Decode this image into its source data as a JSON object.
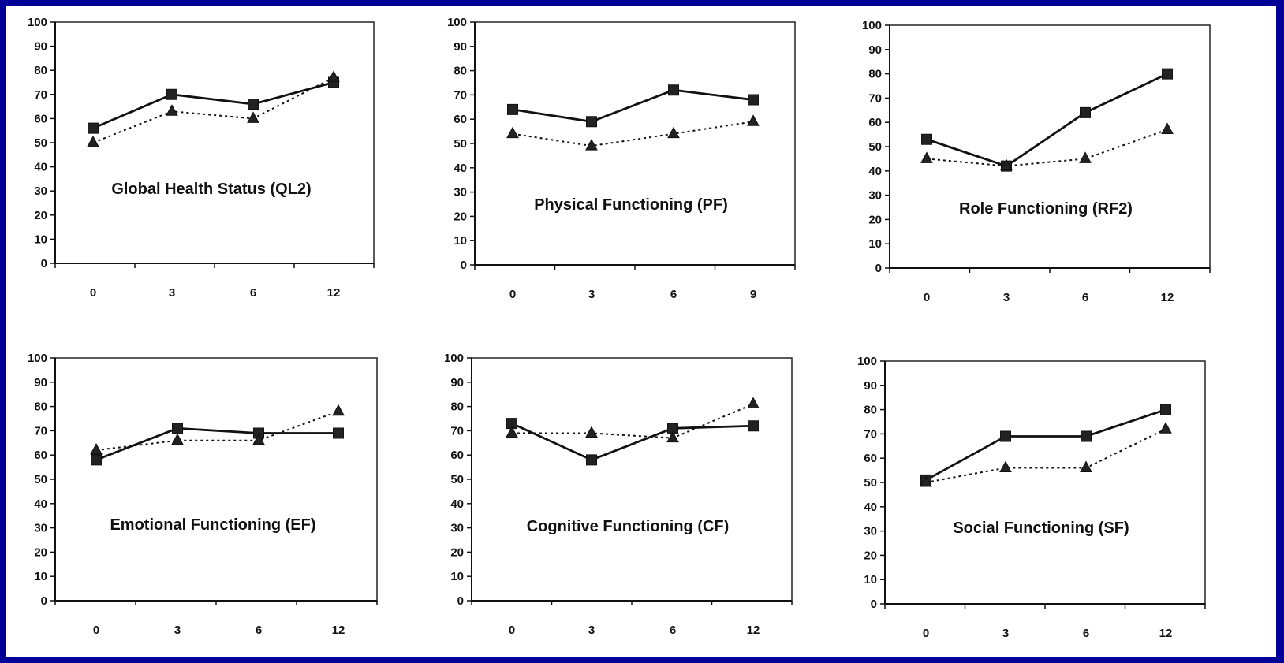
{
  "chart_data": [
    {
      "type": "line",
      "title": "Global Health Status (QL2)",
      "categories": [
        "0",
        "3",
        "6",
        "12"
      ],
      "ylim": [
        0,
        100
      ],
      "yticks": [
        "0",
        "10",
        "20",
        "30",
        "40",
        "50",
        "60",
        "70",
        "80",
        "90",
        "100"
      ],
      "grid": false,
      "series": [
        {
          "marker": "square",
          "style": "solid",
          "values": [
            56,
            70,
            66,
            75
          ]
        },
        {
          "marker": "triangle",
          "style": "dotted",
          "values": [
            50,
            63,
            60,
            77
          ]
        }
      ]
    },
    {
      "type": "line",
      "title": "Physical Functioning (PF)",
      "categories": [
        "0",
        "3",
        "6",
        "9"
      ],
      "ylim": [
        0,
        100
      ],
      "yticks": [
        "0",
        "10",
        "20",
        "30",
        "40",
        "50",
        "60",
        "70",
        "80",
        "90",
        "100"
      ],
      "grid": false,
      "series": [
        {
          "marker": "square",
          "style": "solid",
          "values": [
            64,
            59,
            72,
            68
          ]
        },
        {
          "marker": "triangle",
          "style": "dotted",
          "values": [
            54,
            49,
            54,
            59
          ]
        }
      ]
    },
    {
      "type": "line",
      "title": "Role Functioning (RF2)",
      "categories": [
        "0",
        "3",
        "6",
        "12"
      ],
      "ylim": [
        0,
        100
      ],
      "yticks": [
        "0",
        "10",
        "20",
        "30",
        "40",
        "50",
        "60",
        "70",
        "80",
        "90",
        "100"
      ],
      "grid": false,
      "series": [
        {
          "marker": "square",
          "style": "solid",
          "values": [
            53,
            42,
            64,
            80
          ]
        },
        {
          "marker": "triangle",
          "style": "dotted",
          "values": [
            45,
            42,
            45,
            57
          ]
        }
      ]
    },
    {
      "type": "line",
      "title": "Emotional Functioning (EF)",
      "categories": [
        "0",
        "3",
        "6",
        "12"
      ],
      "ylim": [
        0,
        100
      ],
      "yticks": [
        "0",
        "10",
        "20",
        "30",
        "40",
        "50",
        "60",
        "70",
        "80",
        "90",
        "100"
      ],
      "grid": false,
      "series": [
        {
          "marker": "square",
          "style": "solid",
          "values": [
            58,
            71,
            69,
            69
          ]
        },
        {
          "marker": "triangle",
          "style": "dotted",
          "values": [
            62,
            66,
            66,
            78
          ]
        }
      ]
    },
    {
      "type": "line",
      "title": "Cognitive Functioning (CF)",
      "categories": [
        "0",
        "3",
        "6",
        "12"
      ],
      "ylim": [
        0,
        100
      ],
      "yticks": [
        "0",
        "10",
        "20",
        "30",
        "40",
        "50",
        "60",
        "70",
        "80",
        "90",
        "100"
      ],
      "grid": false,
      "series": [
        {
          "marker": "square",
          "style": "solid",
          "values": [
            73,
            58,
            71,
            72
          ]
        },
        {
          "marker": "triangle",
          "style": "dotted",
          "values": [
            69,
            69,
            67,
            81
          ]
        }
      ]
    },
    {
      "type": "line",
      "title": "Social Functioning (SF)",
      "categories": [
        "0",
        "3",
        "6",
        "12"
      ],
      "ylim": [
        0,
        100
      ],
      "yticks": [
        "0",
        "10",
        "20",
        "30",
        "40",
        "50",
        "60",
        "70",
        "80",
        "90",
        "100"
      ],
      "grid": false,
      "series": [
        {
          "marker": "square",
          "style": "solid",
          "values": [
            51,
            69,
            69,
            80
          ]
        },
        {
          "marker": "triangle",
          "style": "dotted",
          "values": [
            50,
            56,
            56,
            72
          ]
        }
      ]
    }
  ]
}
